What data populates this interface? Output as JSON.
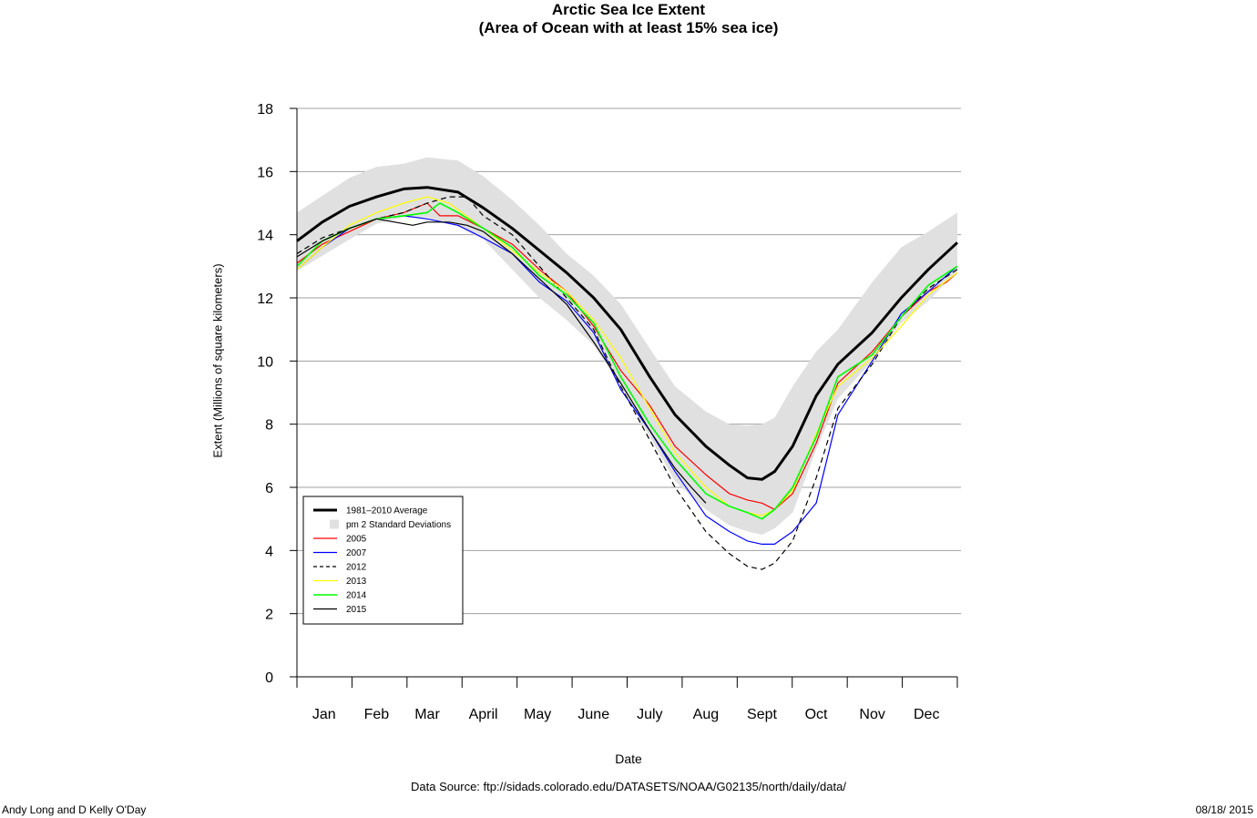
{
  "chart_data": {
    "type": "line",
    "title": "Arctic Sea Ice Extent",
    "subtitle": "(Area of Ocean with at least 15% sea ice)",
    "xlabel": "Date",
    "ylabel": "Extent (Millions of square kilometers)",
    "x_tick_labels": [
      "Jan",
      "Feb",
      "Mar",
      "April",
      "May",
      "June",
      "July",
      "Aug",
      "Sept",
      "Oct",
      "Nov",
      "Dec"
    ],
    "x_label_days": [
      16,
      45,
      73,
      104,
      134,
      165,
      196,
      227,
      258,
      288,
      319,
      349
    ],
    "xlim": [
      1,
      366
    ],
    "ylim": [
      0,
      18
    ],
    "y_ticks": [
      0,
      2,
      4,
      6,
      8,
      10,
      12,
      14,
      16,
      18
    ],
    "grid": true,
    "legend_position": "bottom-left",
    "legend_entries": [
      "1981–2010 Average",
      "pm 2 Standard Deviations",
      "2005",
      "2007",
      "2012",
      "2013",
      "2014",
      "2015"
    ],
    "band": {
      "name": "pm 2 Standard Deviations",
      "color": "#e0e0e0",
      "x": [
        1,
        30,
        45,
        60,
        73,
        90,
        104,
        120,
        135,
        150,
        165,
        180,
        196,
        210,
        227,
        240,
        250,
        258,
        265,
        275,
        288,
        300,
        319,
        335,
        350,
        366
      ],
      "upper": [
        14.7,
        15.8,
        16.15,
        16.25,
        16.45,
        16.35,
        15.85,
        15.1,
        14.3,
        13.4,
        12.7,
        11.8,
        10.4,
        9.2,
        8.4,
        8.0,
        7.95,
        8.0,
        8.2,
        9.2,
        10.3,
        11.0,
        12.5,
        13.6,
        14.1,
        14.7
      ],
      "lower": [
        12.85,
        13.85,
        14.35,
        14.55,
        14.55,
        14.25,
        13.85,
        12.9,
        12.0,
        11.3,
        10.5,
        9.2,
        7.6,
        6.2,
        5.3,
        4.8,
        4.6,
        4.5,
        4.7,
        5.2,
        7.2,
        8.8,
        10.0,
        11.2,
        11.9,
        12.85
      ]
    },
    "series": [
      {
        "name": "1981–2010 Average",
        "color": "#000000",
        "width": 3,
        "dash": "",
        "x": [
          1,
          15,
          30,
          45,
          60,
          73,
          90,
          104,
          120,
          135,
          150,
          165,
          180,
          196,
          210,
          227,
          240,
          250,
          258,
          265,
          275,
          288,
          300,
          319,
          335,
          350,
          366
        ],
        "values": [
          13.8,
          14.4,
          14.9,
          15.2,
          15.45,
          15.5,
          15.35,
          14.85,
          14.2,
          13.5,
          12.8,
          12.0,
          11.0,
          9.5,
          8.3,
          7.3,
          6.7,
          6.3,
          6.25,
          6.5,
          7.3,
          8.9,
          9.9,
          10.9,
          12.0,
          12.9,
          13.75
        ]
      },
      {
        "name": "2005",
        "color": "#ff0000",
        "width": 1.2,
        "dash": "",
        "x": [
          1,
          15,
          30,
          45,
          60,
          73,
          80,
          90,
          104,
          120,
          135,
          150,
          165,
          180,
          196,
          210,
          227,
          240,
          250,
          258,
          265,
          275,
          288,
          300,
          319,
          335,
          350,
          360,
          366
        ],
        "values": [
          13.1,
          13.7,
          14.1,
          14.5,
          14.7,
          15.0,
          14.6,
          14.6,
          14.2,
          13.7,
          12.9,
          12.2,
          11.1,
          9.7,
          8.6,
          7.3,
          6.4,
          5.8,
          5.6,
          5.5,
          5.3,
          5.8,
          7.4,
          9.3,
          10.3,
          11.4,
          12.2,
          12.5,
          12.8
        ]
      },
      {
        "name": "2007",
        "color": "#0000ff",
        "width": 1.2,
        "dash": "",
        "x": [
          1,
          15,
          30,
          45,
          60,
          73,
          90,
          104,
          120,
          135,
          150,
          165,
          180,
          196,
          210,
          227,
          240,
          250,
          258,
          265,
          275,
          288,
          300,
          319,
          335,
          350,
          366
        ],
        "values": [
          12.9,
          13.6,
          14.2,
          14.5,
          14.6,
          14.5,
          14.3,
          13.9,
          13.4,
          12.5,
          11.9,
          10.9,
          9.1,
          7.8,
          6.5,
          5.1,
          4.6,
          4.3,
          4.2,
          4.2,
          4.6,
          5.5,
          8.3,
          10.0,
          11.5,
          12.2,
          13.0
        ]
      },
      {
        "name": "2012",
        "color": "#000000",
        "width": 1.2,
        "dash": "6,4",
        "x": [
          1,
          15,
          30,
          45,
          60,
          73,
          85,
          95,
          104,
          120,
          135,
          150,
          165,
          180,
          196,
          210,
          227,
          240,
          250,
          258,
          265,
          275,
          288,
          300,
          319,
          335,
          350,
          366
        ],
        "values": [
          13.4,
          13.9,
          14.2,
          14.5,
          14.7,
          15.0,
          15.2,
          15.2,
          14.6,
          14.0,
          13.0,
          12.0,
          11.0,
          9.2,
          7.5,
          6.0,
          4.6,
          3.9,
          3.5,
          3.4,
          3.6,
          4.3,
          6.3,
          8.5,
          9.9,
          11.4,
          12.3,
          12.9
        ]
      },
      {
        "name": "2013",
        "color": "#ffff00",
        "width": 1.2,
        "dash": "",
        "x": [
          1,
          15,
          30,
          45,
          60,
          73,
          85,
          104,
          120,
          135,
          150,
          165,
          180,
          196,
          210,
          227,
          240,
          250,
          258,
          265,
          275,
          288,
          300,
          319,
          335,
          350,
          366
        ],
        "values": [
          12.9,
          13.6,
          14.3,
          14.7,
          15.0,
          15.2,
          15.0,
          14.2,
          13.5,
          12.8,
          12.2,
          11.3,
          10.1,
          8.5,
          7.1,
          6.0,
          5.4,
          5.2,
          5.1,
          5.3,
          5.9,
          7.7,
          9.2,
          10.1,
          11.1,
          12.1,
          12.8
        ]
      },
      {
        "name": "2014",
        "color": "#00ff00",
        "width": 1.6,
        "dash": "",
        "x": [
          1,
          15,
          30,
          45,
          60,
          73,
          80,
          90,
          104,
          120,
          135,
          150,
          165,
          180,
          196,
          210,
          227,
          240,
          250,
          258,
          265,
          275,
          288,
          300,
          319,
          335,
          350,
          366
        ],
        "values": [
          13.0,
          13.8,
          14.2,
          14.5,
          14.6,
          14.7,
          15.0,
          14.7,
          14.2,
          13.6,
          12.7,
          12.1,
          11.2,
          9.5,
          8.0,
          6.9,
          5.8,
          5.4,
          5.2,
          5.0,
          5.3,
          6.0,
          7.6,
          9.5,
          10.2,
          11.4,
          12.4,
          13.0
        ]
      },
      {
        "name": "2015",
        "color": "#000000",
        "width": 1.2,
        "dash": "",
        "x": [
          1,
          15,
          30,
          45,
          55,
          65,
          73,
          85,
          95,
          104,
          120,
          135,
          150,
          165,
          180,
          196,
          210,
          219,
          227
        ],
        "values": [
          13.3,
          13.8,
          14.2,
          14.5,
          14.4,
          14.3,
          14.4,
          14.4,
          14.3,
          14.1,
          13.4,
          12.6,
          11.8,
          10.6,
          9.3,
          7.8,
          6.6,
          6.0,
          5.5
        ]
      }
    ]
  },
  "footer": {
    "source": "Data Source:  ftp://sidads.colorado.edu/DATASETS/NOAA/G02135/north/daily/data/",
    "credit": "Andy Long and D Kelly O'Day",
    "date": "08/18/ 2015"
  }
}
